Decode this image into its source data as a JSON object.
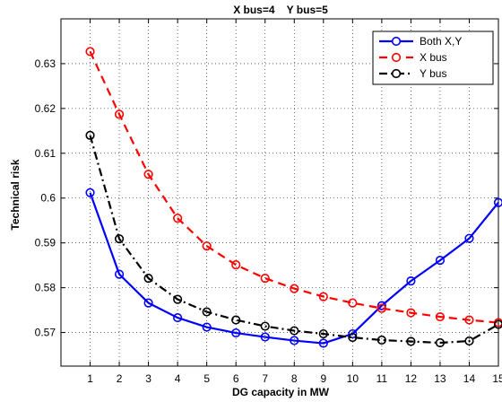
{
  "chart_data": {
    "type": "line",
    "title": "X bus=4    Y bus=5",
    "xlabel": "DG capacity in MW",
    "ylabel": "Technical risk",
    "x": [
      1,
      2,
      3,
      4,
      5,
      6,
      7,
      8,
      9,
      10,
      11,
      12,
      13,
      14,
      15
    ],
    "xlim": [
      0,
      15
    ],
    "ylim": [
      0.5625,
      0.64
    ],
    "xticks": [
      "1",
      "2",
      "3",
      "4",
      "5",
      "6",
      "7",
      "8",
      "9",
      "10",
      "11",
      "12",
      "13",
      "14",
      "15"
    ],
    "yticks": [
      "0.57",
      "0.58",
      "0.59",
      "0.6",
      "0.61",
      "0.62",
      "0.63"
    ],
    "ytick_values": [
      0.57,
      0.58,
      0.59,
      0.6,
      0.61,
      0.62,
      0.63
    ],
    "grid": true,
    "legend_position": "top-right",
    "series": [
      {
        "name": "Both X,Y",
        "color": "#0000ff",
        "line_style": "solid",
        "marker": "circle",
        "values": [
          0.6012,
          0.583,
          0.5766,
          0.5733,
          0.5712,
          0.5699,
          0.569,
          0.5682,
          0.5676,
          0.5697,
          0.576,
          0.5815,
          0.5861,
          0.591,
          0.599
        ]
      },
      {
        "name": "X bus",
        "color": "#ff0000",
        "line_style": "dashed",
        "marker": "circle",
        "values": [
          0.6327,
          0.6187,
          0.6053,
          0.5955,
          0.5893,
          0.5851,
          0.5821,
          0.5798,
          0.578,
          0.5766,
          0.5754,
          0.5744,
          0.5735,
          0.5728,
          0.5722
        ]
      },
      {
        "name": "Y bus",
        "color": "#000000",
        "line_style": "dashdot",
        "marker": "circle",
        "values": [
          0.614,
          0.5909,
          0.5821,
          0.5774,
          0.5746,
          0.5728,
          0.5714,
          0.5704,
          0.5697,
          0.5689,
          0.5683,
          0.568,
          0.5677,
          0.5681,
          0.5718
        ]
      }
    ]
  }
}
